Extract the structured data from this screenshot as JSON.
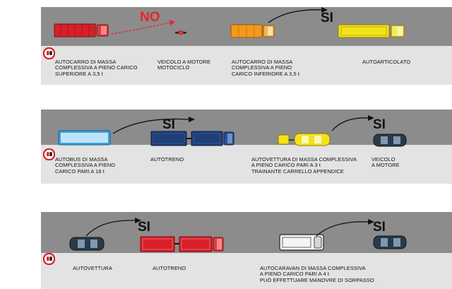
{
  "panels": [
    {
      "labels": [
        "AUTOCARRO DI MASSA\nCOMPLESSIVA A PIENO CARICO\nSUPERIORE A 3,5 t",
        "VEICOLO A MOTORE\nMOTOCICLO",
        "AUTOCARRO DI MASSA\nCOMPLESSIVA A PIENO\nCARICO INFERIORE A 3,5 t",
        "AUTOARTICOLATO"
      ],
      "words": [
        "NO",
        "SI"
      ]
    },
    {
      "labels": [
        "AUTOBUS DI MASSA\nCOMPLESSIVA A PIENO\nCARICO PARI A 18 t",
        "AUTOTRENO",
        "AUTOVETTURA DI MASSA COMPLESSIVA\nA PIENO CARICO PARI A 3 t\nTRAINANTE CARRELLO APPENDICE",
        "VEICOLO\nA MOTORE"
      ],
      "words": [
        "SI",
        "SI"
      ]
    },
    {
      "labels": [
        "AUTOVETTURA",
        "AUTOTRENO",
        "AUTOCARAVAN DI MASSA COMPLESSIVA\nA PIENO CARICO PARI A 4 t\nPUÒ EFFETTUARE MANOVRE DI SORPASSO"
      ],
      "words": [
        "SI",
        "SI"
      ]
    }
  ],
  "colors": {
    "road": "#8c8c8c",
    "red": "#d8202a",
    "orange": "#f39a1e",
    "yellow": "#f3e21a",
    "light_blue": "#3da4e0",
    "dark_blue": "#1f3f78",
    "dark_car": "#2a3a48"
  },
  "icons": [
    "no-overtaking-sign-icon",
    "overtake-arrow-icon"
  ]
}
